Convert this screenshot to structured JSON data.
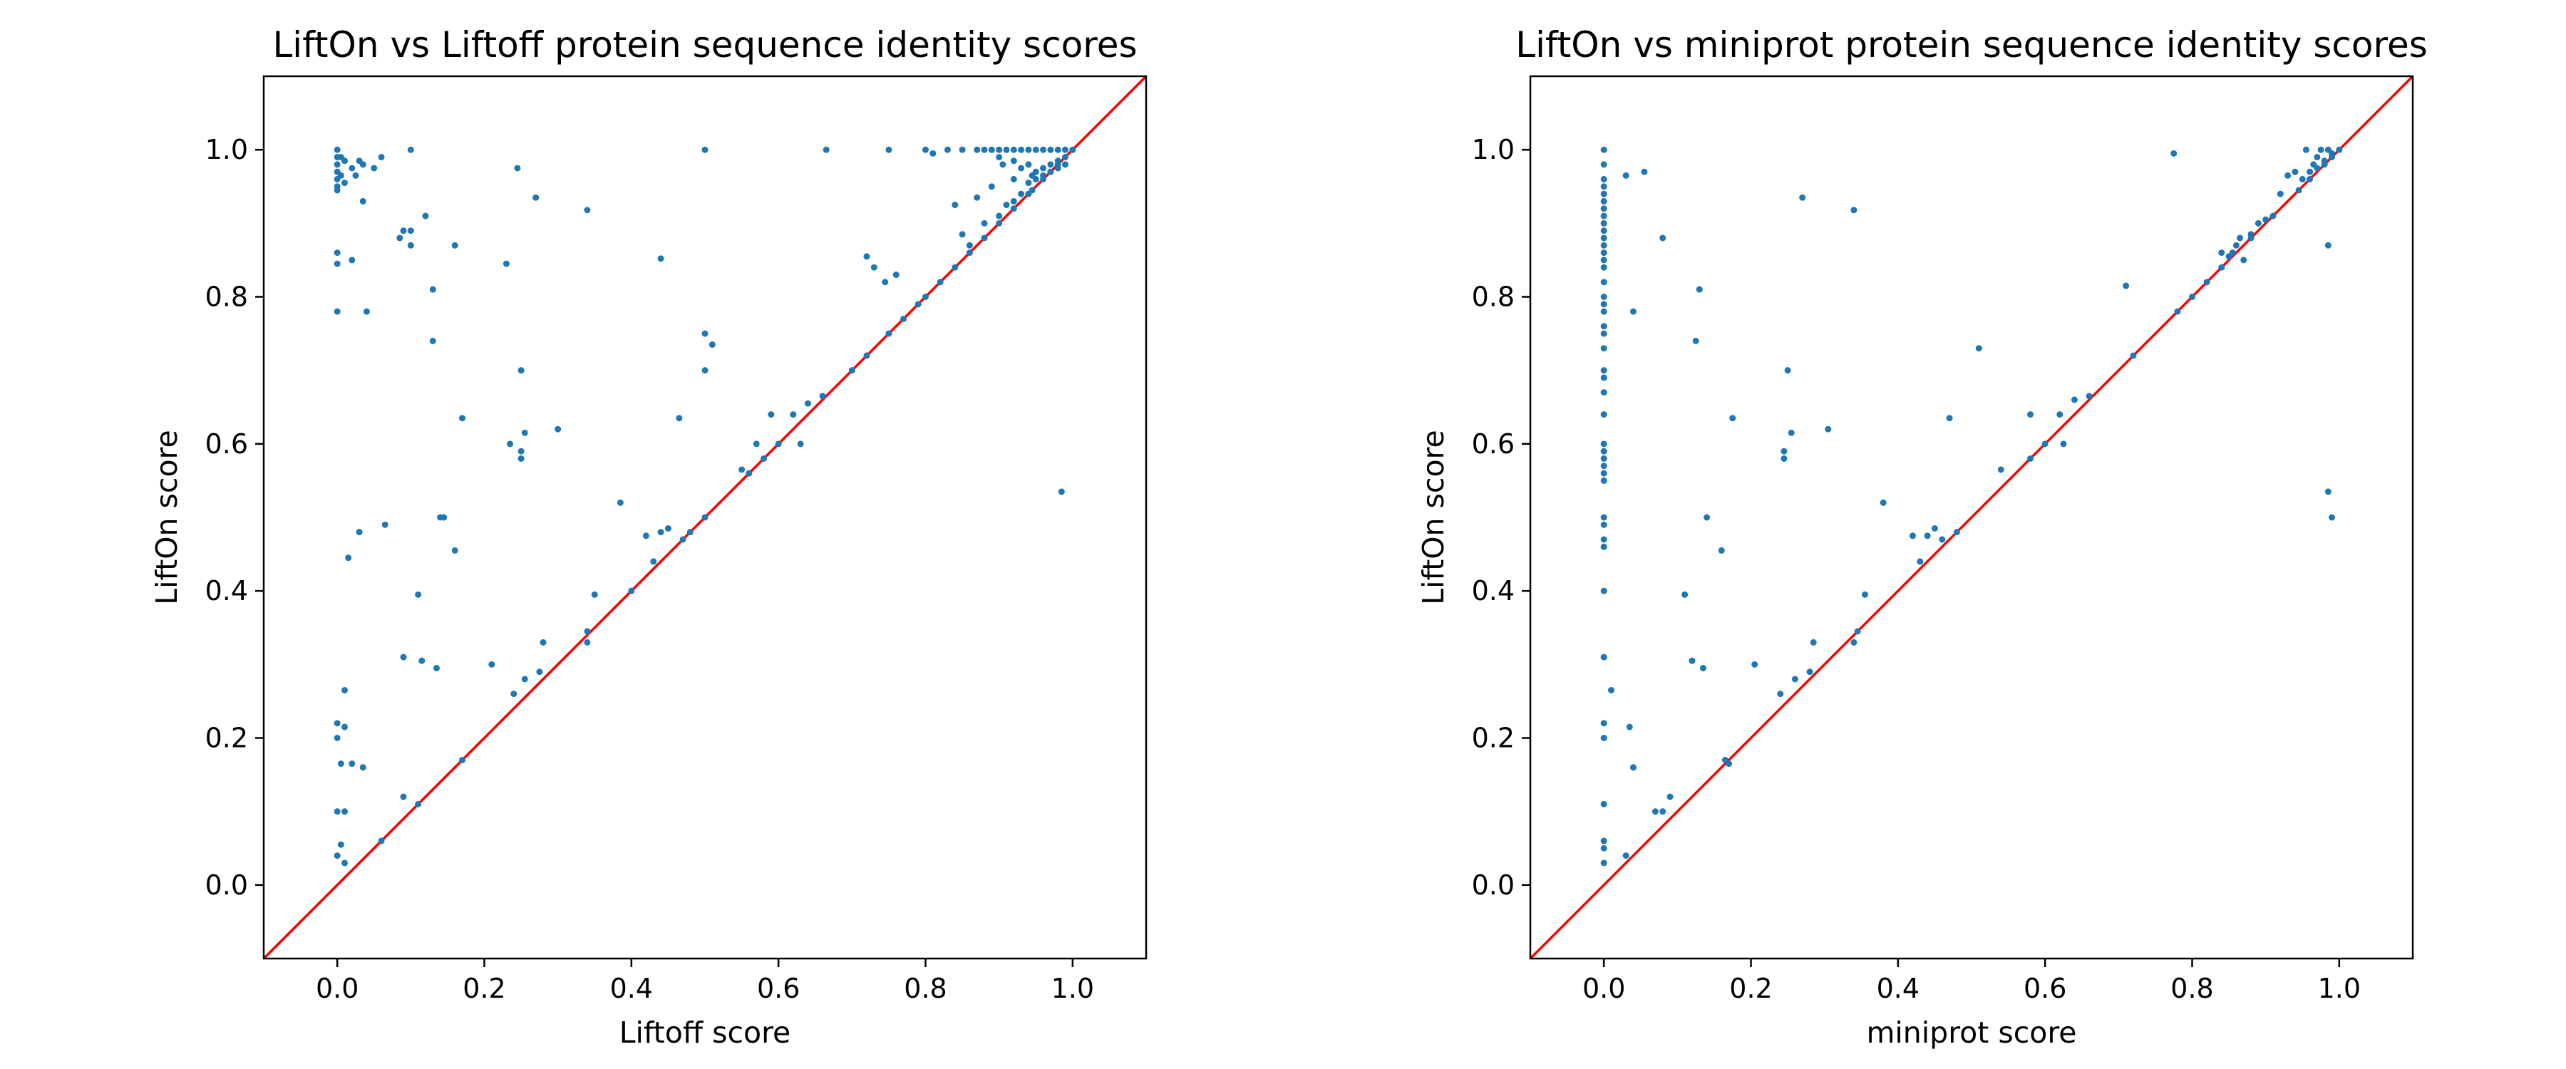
{
  "chart_data": [
    {
      "type": "scatter",
      "title": "LiftOn vs Liftoff protein sequence identity scores",
      "xlabel": "Liftoff score",
      "ylabel": "LiftOn score",
      "xlim": [
        -0.1,
        1.1
      ],
      "ylim": [
        -0.1,
        1.1
      ],
      "xticks": [
        0.0,
        0.2,
        0.4,
        0.6,
        0.8,
        1.0
      ],
      "yticks": [
        0.0,
        0.2,
        0.4,
        0.6,
        0.8,
        1.0
      ],
      "xtick_labels": [
        "0.0",
        "0.2",
        "0.4",
        "0.6",
        "0.8",
        "1.0"
      ],
      "ytick_labels": [
        "0.0",
        "0.2",
        "0.4",
        "0.6",
        "0.8",
        "1.0"
      ],
      "grid": false,
      "reference_line": {
        "from": [
          -0.1,
          -0.1
        ],
        "to": [
          1.1,
          1.1
        ],
        "color": "#ff0000"
      },
      "point_color": "#1f77b4",
      "points": [
        [
          0.0,
          1.0
        ],
        [
          0.0,
          0.99
        ],
        [
          0.0,
          0.98
        ],
        [
          0.0,
          0.97
        ],
        [
          0.0,
          0.96
        ],
        [
          0.0,
          0.95
        ],
        [
          0.0,
          0.945
        ],
        [
          0.005,
          0.99
        ],
        [
          0.005,
          0.965
        ],
        [
          0.01,
          0.985
        ],
        [
          0.01,
          0.955
        ],
        [
          0.02,
          0.975
        ],
        [
          0.025,
          0.965
        ],
        [
          0.03,
          0.985
        ],
        [
          0.035,
          0.98
        ],
        [
          0.05,
          0.975
        ],
        [
          0.06,
          0.99
        ],
        [
          0.1,
          1.0
        ],
        [
          0.035,
          0.93
        ],
        [
          0.0,
          0.86
        ],
        [
          0.0,
          0.845
        ],
        [
          0.02,
          0.85
        ],
        [
          0.0,
          0.78
        ],
        [
          0.04,
          0.78
        ],
        [
          0.085,
          0.88
        ],
        [
          0.09,
          0.89
        ],
        [
          0.1,
          0.89
        ],
        [
          0.1,
          0.87
        ],
        [
          0.12,
          0.91
        ],
        [
          0.16,
          0.87
        ],
        [
          0.13,
          0.81
        ],
        [
          0.13,
          0.74
        ],
        [
          0.23,
          0.845
        ],
        [
          0.245,
          0.975
        ],
        [
          0.27,
          0.935
        ],
        [
          0.34,
          0.918
        ],
        [
          0.44,
          0.852
        ],
        [
          0.17,
          0.635
        ],
        [
          0.235,
          0.6
        ],
        [
          0.25,
          0.7
        ],
        [
          0.25,
          0.59
        ],
        [
          0.25,
          0.58
        ],
        [
          0.255,
          0.615
        ],
        [
          0.3,
          0.62
        ],
        [
          0.14,
          0.5
        ],
        [
          0.145,
          0.5
        ],
        [
          0.16,
          0.455
        ],
        [
          0.065,
          0.49
        ],
        [
          0.03,
          0.48
        ],
        [
          0.015,
          0.445
        ],
        [
          0.11,
          0.395
        ],
        [
          0.385,
          0.52
        ],
        [
          0.42,
          0.475
        ],
        [
          0.44,
          0.48
        ],
        [
          0.45,
          0.485
        ],
        [
          0.465,
          0.635
        ],
        [
          0.5,
          0.75
        ],
        [
          0.5,
          0.7
        ],
        [
          0.51,
          0.735
        ],
        [
          0.09,
          0.31
        ],
        [
          0.115,
          0.305
        ],
        [
          0.135,
          0.295
        ],
        [
          0.21,
          0.3
        ],
        [
          0.255,
          0.28
        ],
        [
          0.275,
          0.29
        ],
        [
          0.28,
          0.33
        ],
        [
          0.34,
          0.33
        ],
        [
          0.35,
          0.395
        ],
        [
          0.0,
          0.22
        ],
        [
          0.01,
          0.215
        ],
        [
          0.0,
          0.2
        ],
        [
          0.005,
          0.165
        ],
        [
          0.02,
          0.165
        ],
        [
          0.035,
          0.16
        ],
        [
          0.01,
          0.265
        ],
        [
          0.0,
          0.1
        ],
        [
          0.01,
          0.1
        ],
        [
          0.0,
          0.04
        ],
        [
          0.005,
          0.055
        ],
        [
          0.01,
          0.03
        ],
        [
          0.09,
          0.12
        ],
        [
          0.5,
          1.0
        ],
        [
          0.665,
          1.0
        ],
        [
          0.75,
          1.0
        ],
        [
          0.8,
          1.0
        ],
        [
          0.81,
          0.995
        ],
        [
          0.83,
          1.0
        ],
        [
          0.85,
          1.0
        ],
        [
          0.87,
          1.0
        ],
        [
          0.88,
          1.0
        ],
        [
          0.89,
          1.0
        ],
        [
          0.9,
          1.0
        ],
        [
          0.91,
          1.0
        ],
        [
          0.92,
          1.0
        ],
        [
          0.93,
          1.0
        ],
        [
          0.94,
          1.0
        ],
        [
          0.95,
          1.0
        ],
        [
          0.96,
          1.0
        ],
        [
          0.97,
          1.0
        ],
        [
          0.98,
          1.0
        ],
        [
          0.99,
          1.0
        ],
        [
          0.9,
          0.99
        ],
        [
          0.905,
          0.98
        ],
        [
          0.92,
          0.985
        ],
        [
          0.93,
          0.975
        ],
        [
          0.94,
          0.98
        ],
        [
          0.95,
          0.97
        ],
        [
          0.96,
          0.975
        ],
        [
          0.97,
          0.98
        ],
        [
          0.98,
          0.985
        ],
        [
          0.99,
          0.99
        ],
        [
          0.92,
          0.96
        ],
        [
          0.94,
          0.955
        ],
        [
          0.95,
          0.96
        ],
        [
          0.96,
          0.965
        ],
        [
          0.97,
          0.97
        ],
        [
          0.98,
          0.975
        ],
        [
          0.99,
          0.98
        ],
        [
          0.93,
          0.94
        ],
        [
          0.945,
          0.945
        ],
        [
          0.84,
          0.925
        ],
        [
          0.87,
          0.935
        ],
        [
          0.89,
          0.95
        ],
        [
          0.85,
          0.885
        ],
        [
          0.86,
          0.87
        ],
        [
          0.88,
          0.9
        ],
        [
          0.9,
          0.91
        ],
        [
          0.91,
          0.925
        ],
        [
          0.92,
          0.93
        ],
        [
          0.945,
          0.965
        ],
        [
          0.72,
          0.855
        ],
        [
          0.73,
          0.84
        ],
        [
          0.745,
          0.82
        ],
        [
          0.76,
          0.83
        ],
        [
          0.985,
          0.535
        ],
        [
          0.06,
          0.06
        ],
        [
          0.11,
          0.11
        ],
        [
          0.17,
          0.17
        ],
        [
          0.24,
          0.26
        ],
        [
          0.34,
          0.345
        ],
        [
          0.4,
          0.4
        ],
        [
          0.43,
          0.44
        ],
        [
          0.47,
          0.47
        ],
        [
          0.48,
          0.48
        ],
        [
          0.5,
          0.5
        ],
        [
          0.55,
          0.565
        ],
        [
          0.56,
          0.56
        ],
        [
          0.57,
          0.6
        ],
        [
          0.58,
          0.58
        ],
        [
          0.6,
          0.6
        ],
        [
          0.59,
          0.64
        ],
        [
          0.62,
          0.64
        ],
        [
          0.63,
          0.6
        ],
        [
          0.64,
          0.655
        ],
        [
          0.66,
          0.665
        ],
        [
          0.7,
          0.7
        ],
        [
          0.72,
          0.72
        ],
        [
          0.75,
          0.75
        ],
        [
          0.77,
          0.77
        ],
        [
          0.79,
          0.79
        ],
        [
          0.8,
          0.8
        ],
        [
          0.82,
          0.82
        ],
        [
          0.84,
          0.84
        ],
        [
          0.86,
          0.86
        ],
        [
          0.88,
          0.88
        ],
        [
          0.9,
          0.9
        ],
        [
          0.92,
          0.92
        ],
        [
          0.94,
          0.94
        ],
        [
          0.96,
          0.96
        ],
        [
          0.98,
          0.98
        ],
        [
          1.0,
          1.0
        ]
      ]
    },
    {
      "type": "scatter",
      "title": "LiftOn vs miniprot protein sequence identity scores",
      "xlabel": "miniprot score",
      "ylabel": "LiftOn score",
      "xlim": [
        -0.1,
        1.1
      ],
      "ylim": [
        -0.1,
        1.1
      ],
      "xticks": [
        0.0,
        0.2,
        0.4,
        0.6,
        0.8,
        1.0
      ],
      "yticks": [
        0.0,
        0.2,
        0.4,
        0.6,
        0.8,
        1.0
      ],
      "xtick_labels": [
        "0.0",
        "0.2",
        "0.4",
        "0.6",
        "0.8",
        "1.0"
      ],
      "ytick_labels": [
        "0.0",
        "0.2",
        "0.4",
        "0.6",
        "0.8",
        "1.0"
      ],
      "grid": false,
      "reference_line": {
        "from": [
          -0.1,
          -0.1
        ],
        "to": [
          1.1,
          1.1
        ],
        "color": "#ff0000"
      },
      "point_color": "#1f77b4",
      "points": [
        [
          0.0,
          1.0
        ],
        [
          0.0,
          0.98
        ],
        [
          0.0,
          0.96
        ],
        [
          0.0,
          0.95
        ],
        [
          0.0,
          0.94
        ],
        [
          0.0,
          0.93
        ],
        [
          0.0,
          0.92
        ],
        [
          0.0,
          0.91
        ],
        [
          0.0,
          0.9
        ],
        [
          0.0,
          0.89
        ],
        [
          0.0,
          0.88
        ],
        [
          0.0,
          0.87
        ],
        [
          0.0,
          0.86
        ],
        [
          0.0,
          0.85
        ],
        [
          0.0,
          0.84
        ],
        [
          0.0,
          0.82
        ],
        [
          0.0,
          0.8
        ],
        [
          0.0,
          0.79
        ],
        [
          0.0,
          0.78
        ],
        [
          0.0,
          0.76
        ],
        [
          0.0,
          0.75
        ],
        [
          0.0,
          0.73
        ],
        [
          0.0,
          0.7
        ],
        [
          0.0,
          0.69
        ],
        [
          0.0,
          0.67
        ],
        [
          0.0,
          0.64
        ],
        [
          0.0,
          0.6
        ],
        [
          0.0,
          0.59
        ],
        [
          0.0,
          0.58
        ],
        [
          0.0,
          0.57
        ],
        [
          0.0,
          0.56
        ],
        [
          0.0,
          0.55
        ],
        [
          0.0,
          0.5
        ],
        [
          0.0,
          0.49
        ],
        [
          0.0,
          0.47
        ],
        [
          0.0,
          0.46
        ],
        [
          0.0,
          0.4
        ],
        [
          0.0,
          0.31
        ],
        [
          0.0,
          0.22
        ],
        [
          0.0,
          0.2
        ],
        [
          0.0,
          0.11
        ],
        [
          0.0,
          0.06
        ],
        [
          0.0,
          0.05
        ],
        [
          0.0,
          0.03
        ],
        [
          0.01,
          0.265
        ],
        [
          0.03,
          0.965
        ],
        [
          0.055,
          0.97
        ],
        [
          0.04,
          0.78
        ],
        [
          0.08,
          0.88
        ],
        [
          0.03,
          0.04
        ],
        [
          0.035,
          0.215
        ],
        [
          0.04,
          0.16
        ],
        [
          0.07,
          0.1
        ],
        [
          0.08,
          0.1
        ],
        [
          0.09,
          0.12
        ],
        [
          0.11,
          0.395
        ],
        [
          0.12,
          0.305
        ],
        [
          0.125,
          0.74
        ],
        [
          0.13,
          0.81
        ],
        [
          0.135,
          0.295
        ],
        [
          0.14,
          0.5
        ],
        [
          0.16,
          0.455
        ],
        [
          0.175,
          0.635
        ],
        [
          0.205,
          0.3
        ],
        [
          0.24,
          0.26
        ],
        [
          0.245,
          0.59
        ],
        [
          0.245,
          0.58
        ],
        [
          0.25,
          0.7
        ],
        [
          0.255,
          0.615
        ],
        [
          0.26,
          0.28
        ],
        [
          0.27,
          0.935
        ],
        [
          0.28,
          0.29
        ],
        [
          0.285,
          0.33
        ],
        [
          0.305,
          0.62
        ],
        [
          0.34,
          0.918
        ],
        [
          0.34,
          0.33
        ],
        [
          0.345,
          0.345
        ],
        [
          0.355,
          0.395
        ],
        [
          0.38,
          0.52
        ],
        [
          0.42,
          0.475
        ],
        [
          0.43,
          0.44
        ],
        [
          0.44,
          0.475
        ],
        [
          0.45,
          0.485
        ],
        [
          0.46,
          0.47
        ],
        [
          0.47,
          0.635
        ],
        [
          0.48,
          0.48
        ],
        [
          0.51,
          0.73
        ],
        [
          0.54,
          0.565
        ],
        [
          0.58,
          0.64
        ],
        [
          0.58,
          0.58
        ],
        [
          0.6,
          0.6
        ],
        [
          0.62,
          0.64
        ],
        [
          0.625,
          0.6
        ],
        [
          0.64,
          0.66
        ],
        [
          0.66,
          0.665
        ],
        [
          0.71,
          0.815
        ],
        [
          0.72,
          0.72
        ],
        [
          0.78,
          0.78
        ],
        [
          0.775,
          0.995
        ],
        [
          0.8,
          0.8
        ],
        [
          0.82,
          0.82
        ],
        [
          0.84,
          0.84
        ],
        [
          0.85,
          0.855
        ],
        [
          0.86,
          0.87
        ],
        [
          0.87,
          0.85
        ],
        [
          0.88,
          0.88
        ],
        [
          0.89,
          0.9
        ],
        [
          0.9,
          0.905
        ],
        [
          0.91,
          0.91
        ],
        [
          0.92,
          0.94
        ],
        [
          0.93,
          0.965
        ],
        [
          0.94,
          0.97
        ],
        [
          0.945,
          0.945
        ],
        [
          0.95,
          0.96
        ],
        [
          0.955,
          1.0
        ],
        [
          0.96,
          0.97
        ],
        [
          0.965,
          0.98
        ],
        [
          0.97,
          0.99
        ],
        [
          0.975,
          1.0
        ],
        [
          0.98,
          0.985
        ],
        [
          0.985,
          1.0
        ],
        [
          0.99,
          0.995
        ],
        [
          1.0,
          1.0
        ],
        [
          0.84,
          0.86
        ],
        [
          0.855,
          0.86
        ],
        [
          0.865,
          0.88
        ],
        [
          0.88,
          0.885
        ],
        [
          0.96,
          0.96
        ],
        [
          0.97,
          0.975
        ],
        [
          0.98,
          0.98
        ],
        [
          0.99,
          0.99
        ],
        [
          0.985,
          0.87
        ],
        [
          0.985,
          0.535
        ],
        [
          0.99,
          0.5
        ],
        [
          0.165,
          0.17
        ],
        [
          0.17,
          0.165
        ]
      ]
    }
  ]
}
